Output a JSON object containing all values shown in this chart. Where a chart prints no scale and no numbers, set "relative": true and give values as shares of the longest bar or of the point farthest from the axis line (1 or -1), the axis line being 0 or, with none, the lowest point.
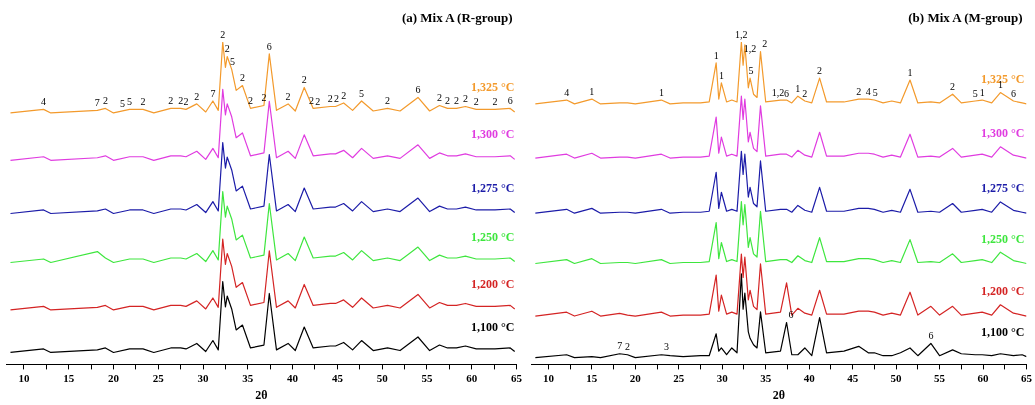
{
  "chart_data": [
    {
      "type": "line",
      "title": "(a) Mix A (R-group)",
      "xlabel": "2θ",
      "relative": true,
      "xlim": [
        8,
        65
      ],
      "xticks": [
        10,
        {
          "value": 12.5,
          "label": null
        },
        15,
        {
          "value": 17.5,
          "label": null
        },
        20,
        {
          "value": 22.5,
          "label": null
        },
        25,
        {
          "value": 27.5,
          "label": null
        },
        30,
        {
          "value": 32.5,
          "label": null
        },
        35,
        {
          "value": 37.5,
          "label": null
        },
        40,
        {
          "value": 42.5,
          "label": null
        },
        45,
        {
          "value": 47.5,
          "label": null
        },
        50,
        {
          "value": 52.5,
          "label": null
        },
        55,
        {
          "value": 57.5,
          "label": null
        },
        60,
        {
          "value": 62.5,
          "label": null
        },
        65
      ],
      "x": [
        8.5,
        12.2,
        13,
        18.2,
        19.1,
        20,
        21.8,
        23.3,
        24.5,
        26.4,
        27.5,
        28.1,
        29.3,
        30.3,
        31.1,
        31.7,
        32.2,
        32.5,
        32.7,
        33.2,
        33.7,
        34.4,
        35.3,
        36.8,
        37.4,
        38.2,
        39.5,
        40.3,
        41.3,
        42.3,
        44.2,
        44.8,
        45.7,
        46.7,
        47.7,
        49,
        50.6,
        52,
        54,
        55.3,
        56.4,
        57.3,
        58.3,
        59.3,
        60.5,
        62.6,
        64.3,
        64.8
      ],
      "series": [
        {
          "name": "1,325 °C",
          "color": "#f39a2c",
          "values": [
            0.78,
            0.791,
            0.78,
            0.788,
            0.794,
            0.78,
            0.791,
            0.791,
            0.78,
            0.794,
            0.794,
            0.791,
            0.808,
            0.783,
            0.817,
            0.788,
            1,
            0.921,
            0.955,
            0.915,
            0.85,
            0.865,
            0.794,
            0.803,
            0.963,
            0.788,
            0.808,
            0.786,
            0.859,
            0.794,
            0.8,
            0.8,
            0.811,
            0.788,
            0.817,
            0.786,
            0.794,
            0.786,
            0.828,
            0.786,
            0.803,
            0.794,
            0.794,
            0.8,
            0.791,
            0.791,
            0.794,
            0.783
          ]
        },
        {
          "name": "1,300 °C",
          "color": "#e03ce0",
          "values": [
            0.633,
            0.644,
            0.633,
            0.641,
            0.647,
            0.633,
            0.644,
            0.644,
            0.633,
            0.647,
            0.647,
            0.644,
            0.661,
            0.636,
            0.67,
            0.641,
            0.853,
            0.774,
            0.808,
            0.768,
            0.703,
            0.718,
            0.647,
            0.656,
            0.816,
            0.641,
            0.661,
            0.639,
            0.712,
            0.647,
            0.653,
            0.653,
            0.664,
            0.641,
            0.67,
            0.639,
            0.647,
            0.639,
            0.681,
            0.639,
            0.656,
            0.647,
            0.647,
            0.653,
            0.644,
            0.644,
            0.647,
            0.636
          ]
        },
        {
          "name": "1,275 °C",
          "color": "#1c1ca8",
          "values": [
            0.468,
            0.479,
            0.468,
            0.476,
            0.482,
            0.468,
            0.479,
            0.479,
            0.468,
            0.482,
            0.482,
            0.479,
            0.496,
            0.471,
            0.505,
            0.476,
            0.688,
            0.609,
            0.643,
            0.603,
            0.538,
            0.553,
            0.482,
            0.491,
            0.651,
            0.476,
            0.496,
            0.474,
            0.547,
            0.482,
            0.488,
            0.488,
            0.499,
            0.476,
            0.505,
            0.474,
            0.482,
            0.474,
            0.516,
            0.474,
            0.491,
            0.482,
            0.482,
            0.488,
            0.479,
            0.479,
            0.482,
            0.471
          ]
        },
        {
          "name": "1,250 °C",
          "color": "#3ee63e",
          "values": [
            0.316,
            0.327,
            0.316,
            0.35,
            0.33,
            0.316,
            0.327,
            0.327,
            0.316,
            0.33,
            0.33,
            0.327,
            0.344,
            0.319,
            0.353,
            0.324,
            0.536,
            0.457,
            0.491,
            0.451,
            0.386,
            0.401,
            0.33,
            0.339,
            0.499,
            0.324,
            0.344,
            0.322,
            0.395,
            0.33,
            0.336,
            0.336,
            0.347,
            0.324,
            0.353,
            0.322,
            0.33,
            0.322,
            0.364,
            0.322,
            0.339,
            0.33,
            0.33,
            0.336,
            0.327,
            0.327,
            0.33,
            0.319
          ]
        },
        {
          "name": "1,200 °C",
          "color": "#d42424",
          "values": [
            0.169,
            0.18,
            0.169,
            0.177,
            0.183,
            0.169,
            0.18,
            0.18,
            0.169,
            0.183,
            0.183,
            0.18,
            0.197,
            0.172,
            0.206,
            0.177,
            0.389,
            0.31,
            0.344,
            0.304,
            0.239,
            0.254,
            0.183,
            0.192,
            0.352,
            0.177,
            0.197,
            0.175,
            0.248,
            0.183,
            0.189,
            0.189,
            0.2,
            0.177,
            0.206,
            0.175,
            0.183,
            0.175,
            0.217,
            0.175,
            0.192,
            0.183,
            0.183,
            0.189,
            0.18,
            0.18,
            0.183,
            0.172
          ]
        },
        {
          "name": "1,100 °C",
          "color": "#000000",
          "values": [
            0.037,
            0.048,
            0.037,
            0.045,
            0.051,
            0.037,
            0.048,
            0.048,
            0.037,
            0.051,
            0.051,
            0.048,
            0.065,
            0.04,
            0.074,
            0.045,
            0.257,
            0.178,
            0.212,
            0.172,
            0.107,
            0.122,
            0.051,
            0.06,
            0.22,
            0.045,
            0.065,
            0.043,
            0.116,
            0.051,
            0.057,
            0.057,
            0.068,
            0.045,
            0.074,
            0.043,
            0.051,
            0.043,
            0.085,
            0.043,
            0.06,
            0.051,
            0.051,
            0.057,
            0.048,
            0.048,
            0.051,
            0.04
          ]
        }
      ],
      "annotations": [
        {
          "text": "4",
          "x": 12.2,
          "y": 0.791
        },
        {
          "text": "7",
          "x": 18.2,
          "y": 0.788
        },
        {
          "text": "2",
          "x": 19.1,
          "y": 0.794
        },
        {
          "text": "5",
          "x": 21.0,
          "y": 0.785
        },
        {
          "text": "5",
          "x": 21.8,
          "y": 0.791
        },
        {
          "text": "2",
          "x": 23.3,
          "y": 0.791
        },
        {
          "text": "2",
          "x": 26.4,
          "y": 0.794
        },
        {
          "text": "2",
          "x": 27.5,
          "y": 0.794
        },
        {
          "text": "2",
          "x": 28.1,
          "y": 0.791
        },
        {
          "text": "2",
          "x": 29.3,
          "y": 0.808
        },
        {
          "text": "7",
          "x": 31.1,
          "y": 0.817
        },
        {
          "text": "2",
          "x": 32.2,
          "y": 1
        },
        {
          "text": "2",
          "x": 32.7,
          "y": 0.955
        },
        {
          "text": "5",
          "x": 33.3,
          "y": 0.915
        },
        {
          "text": "2",
          "x": 34.4,
          "y": 0.865
        },
        {
          "text": "2",
          "x": 35.3,
          "y": 0.794
        },
        {
          "text": "2",
          "x": 36.8,
          "y": 0.803
        },
        {
          "text": "6",
          "x": 37.4,
          "y": 0.963
        },
        {
          "text": "2",
          "x": 39.5,
          "y": 0.808
        },
        {
          "text": "2",
          "x": 41.3,
          "y": 0.859
        },
        {
          "text": "2",
          "x": 42.1,
          "y": 0.795
        },
        {
          "text": "2",
          "x": 42.8,
          "y": 0.79
        },
        {
          "text": "2",
          "x": 44.2,
          "y": 0.8
        },
        {
          "text": "2",
          "x": 44.9,
          "y": 0.8
        },
        {
          "text": "2",
          "x": 45.7,
          "y": 0.811
        },
        {
          "text": "5",
          "x": 47.7,
          "y": 0.817
        },
        {
          "text": "2",
          "x": 50.6,
          "y": 0.794
        },
        {
          "text": "6",
          "x": 54,
          "y": 0.828
        },
        {
          "text": "2",
          "x": 56.4,
          "y": 0.803
        },
        {
          "text": "2",
          "x": 57.3,
          "y": 0.794
        },
        {
          "text": "2",
          "x": 58.3,
          "y": 0.794
        },
        {
          "text": "2",
          "x": 59.3,
          "y": 0.8
        },
        {
          "text": "2",
          "x": 60.5,
          "y": 0.791
        },
        {
          "text": "2",
          "x": 62.6,
          "y": 0.791
        },
        {
          "text": "6",
          "x": 64.3,
          "y": 0.794
        }
      ]
    },
    {
      "type": "line",
      "title": "(b) Mix A (M-group)",
      "xlabel": "2θ",
      "relative": true,
      "xlim": [
        8,
        65
      ],
      "xticks": [
        10,
        {
          "value": 12.5,
          "label": null
        },
        15,
        {
          "value": 17.5,
          "label": null
        },
        20,
        {
          "value": 22.5,
          "label": null
        },
        25,
        {
          "value": 27.5,
          "label": null
        },
        30,
        {
          "value": 32.5,
          "label": null
        },
        35,
        {
          "value": 37.5,
          "label": null
        },
        40,
        {
          "value": 42.5,
          "label": null
        },
        45,
        {
          "value": 47.5,
          "label": null
        },
        50,
        {
          "value": 52.5,
          "label": null
        },
        55,
        {
          "value": 57.5,
          "label": null
        },
        60,
        {
          "value": 62.5,
          "label": null
        },
        65
      ],
      "x": [
        8.5,
        12.1,
        13,
        15,
        16,
        18.2,
        19.1,
        20,
        23,
        24,
        25.5,
        27.5,
        28.5,
        29.3,
        29.6,
        29.9,
        30.5,
        31.1,
        31.7,
        32.2,
        32.4,
        32.6,
        33,
        33.2,
        33.6,
        34,
        34.4,
        35,
        36.7,
        37.4,
        38,
        38.7,
        39.5,
        40.3,
        41.2,
        42,
        44,
        45.7,
        46.8,
        47.5,
        48.5,
        49.5,
        50.5,
        51.6,
        52.5,
        54,
        55,
        56.5,
        57.5,
        59.1,
        59.9,
        61,
        62,
        63.5,
        64.5,
        65
      ],
      "series": [
        {
          "name": "1,325 °C",
          "color": "#f39a2c",
          "values": [
            0.808,
            0.82,
            0.808,
            0.823,
            0.808,
            0.811,
            0.811,
            0.808,
            0.82,
            0.808,
            0.811,
            0.811,
            0.814,
            0.935,
            0.823,
            0.873,
            0.814,
            0.82,
            0.814,
            1,
            0.928,
            0.991,
            0.858,
            0.888,
            0.838,
            0.828,
            0.97,
            0.814,
            0.82,
            0.82,
            0.811,
            0.832,
            0.817,
            0.811,
            0.888,
            0.814,
            0.814,
            0.823,
            0.823,
            0.82,
            0.811,
            0.817,
            0.811,
            0.882,
            0.811,
            0.814,
            0.811,
            0.838,
            0.811,
            0.817,
            0.82,
            0.811,
            0.843,
            0.817,
            0.811,
            0.808
          ]
        },
        {
          "name": "1,300 °C",
          "color": "#e03ce0",
          "values": [
            0.64,
            0.652,
            0.64,
            0.655,
            0.64,
            0.643,
            0.643,
            0.64,
            0.652,
            0.64,
            0.643,
            0.643,
            0.646,
            0.767,
            0.655,
            0.705,
            0.646,
            0.652,
            0.646,
            0.832,
            0.76,
            0.823,
            0.69,
            0.72,
            0.67,
            0.66,
            0.802,
            0.646,
            0.652,
            0.652,
            0.643,
            0.664,
            0.649,
            0.643,
            0.72,
            0.646,
            0.646,
            0.655,
            0.655,
            0.652,
            0.643,
            0.649,
            0.643,
            0.714,
            0.643,
            0.646,
            0.643,
            0.67,
            0.643,
            0.649,
            0.652,
            0.643,
            0.675,
            0.649,
            0.643,
            0.64
          ]
        },
        {
          "name": "1,275 °C",
          "color": "#1c1ca8",
          "values": [
            0.469,
            0.481,
            0.469,
            0.484,
            0.469,
            0.472,
            0.472,
            0.469,
            0.481,
            0.469,
            0.472,
            0.472,
            0.475,
            0.596,
            0.484,
            0.534,
            0.475,
            0.481,
            0.475,
            0.661,
            0.589,
            0.652,
            0.519,
            0.549,
            0.499,
            0.489,
            0.631,
            0.475,
            0.481,
            0.481,
            0.472,
            0.493,
            0.478,
            0.472,
            0.549,
            0.475,
            0.475,
            0.484,
            0.484,
            0.481,
            0.472,
            0.478,
            0.472,
            0.543,
            0.472,
            0.475,
            0.472,
            0.499,
            0.472,
            0.478,
            0.481,
            0.472,
            0.504,
            0.478,
            0.472,
            0.469
          ]
        },
        {
          "name": "1,250 °C",
          "color": "#3ee63e",
          "values": [
            0.313,
            0.325,
            0.313,
            0.328,
            0.313,
            0.316,
            0.316,
            0.313,
            0.325,
            0.313,
            0.316,
            0.316,
            0.319,
            0.44,
            0.328,
            0.378,
            0.319,
            0.325,
            0.319,
            0.505,
            0.433,
            0.496,
            0.363,
            0.393,
            0.343,
            0.333,
            0.475,
            0.319,
            0.325,
            0.325,
            0.316,
            0.337,
            0.322,
            0.316,
            0.393,
            0.319,
            0.319,
            0.328,
            0.328,
            0.325,
            0.316,
            0.322,
            0.316,
            0.387,
            0.316,
            0.319,
            0.316,
            0.343,
            0.316,
            0.322,
            0.325,
            0.316,
            0.348,
            0.322,
            0.316,
            0.313
          ]
        },
        {
          "name": "1,200 °C",
          "color": "#d42424",
          "values": [
            0.15,
            0.162,
            0.15,
            0.165,
            0.15,
            0.158,
            0.153,
            0.15,
            0.162,
            0.15,
            0.153,
            0.153,
            0.156,
            0.277,
            0.165,
            0.215,
            0.156,
            0.162,
            0.156,
            0.342,
            0.27,
            0.333,
            0.2,
            0.23,
            0.18,
            0.17,
            0.312,
            0.156,
            0.162,
            0.253,
            0.153,
            0.174,
            0.159,
            0.153,
            0.23,
            0.156,
            0.156,
            0.165,
            0.165,
            0.162,
            0.153,
            0.159,
            0.153,
            0.224,
            0.153,
            0.18,
            0.153,
            0.18,
            0.153,
            0.159,
            0.162,
            0.153,
            0.185,
            0.159,
            0.153,
            0.15
          ]
        },
        {
          "name": "1,100 °C",
          "color": "#000000",
          "values": [
            0.021,
            0.03,
            0.021,
            0.024,
            0.021,
            0.033,
            0.03,
            0.021,
            0.03,
            0.027,
            0.024,
            0.027,
            0.027,
            0.095,
            0.041,
            0.051,
            0.03,
            0.051,
            0.036,
            0.281,
            0.171,
            0.221,
            0.101,
            0.081,
            0.061,
            0.051,
            0.163,
            0.036,
            0.041,
            0.13,
            0.03,
            0.03,
            0.051,
            0.027,
            0.145,
            0.036,
            0.041,
            0.056,
            0.036,
            0.036,
            0.027,
            0.027,
            0.036,
            0.051,
            0.027,
            0.065,
            0.027,
            0.045,
            0.033,
            0.03,
            0.03,
            0.027,
            0.033,
            0.027,
            0.03,
            0.024
          ]
        }
      ],
      "annotations": [
        {
          "text": "4",
          "x": 12.1,
          "y": 0.82
        },
        {
          "text": "1",
          "x": 15,
          "y": 0.823
        },
        {
          "text": "1",
          "x": 23,
          "y": 0.82
        },
        {
          "text": "1",
          "x": 29.3,
          "y": 0.935
        },
        {
          "text": "1",
          "x": 29.9,
          "y": 0.873
        },
        {
          "text": "1,2",
          "x": 32.2,
          "y": 1
        },
        {
          "text": "1,2",
          "x": 33.2,
          "y": 0.955
        },
        {
          "text": "5",
          "x": 33.3,
          "y": 0.888
        },
        {
          "text": "2",
          "x": 34.9,
          "y": 0.97
        },
        {
          "text": "1,2",
          "x": 36.4,
          "y": 0.82
        },
        {
          "text": "6",
          "x": 37.4,
          "y": 0.815
        },
        {
          "text": "1",
          "x": 38.7,
          "y": 0.832
        },
        {
          "text": "2",
          "x": 39.5,
          "y": 0.817
        },
        {
          "text": "2",
          "x": 41.2,
          "y": 0.888
        },
        {
          "text": "2",
          "x": 45.7,
          "y": 0.823
        },
        {
          "text": "4",
          "x": 46.8,
          "y": 0.823
        },
        {
          "text": "5",
          "x": 47.6,
          "y": 0.82
        },
        {
          "text": "1",
          "x": 51.6,
          "y": 0.882
        },
        {
          "text": "2",
          "x": 56.5,
          "y": 0.838
        },
        {
          "text": "5",
          "x": 59.1,
          "y": 0.817
        },
        {
          "text": "1",
          "x": 59.9,
          "y": 0.82
        },
        {
          "text": "1",
          "x": 62,
          "y": 0.843
        },
        {
          "text": "6",
          "x": 63.5,
          "y": 0.817
        },
        {
          "text": "7",
          "x": 18.2,
          "y": 0.033
        },
        {
          "text": "2",
          "x": 19.1,
          "y": 0.03
        },
        {
          "text": "3",
          "x": 23.6,
          "y": 0.03
        },
        {
          "text": "6",
          "x": 37.9,
          "y": 0.13
        },
        {
          "text": "6",
          "x": 54,
          "y": 0.065
        }
      ]
    }
  ]
}
